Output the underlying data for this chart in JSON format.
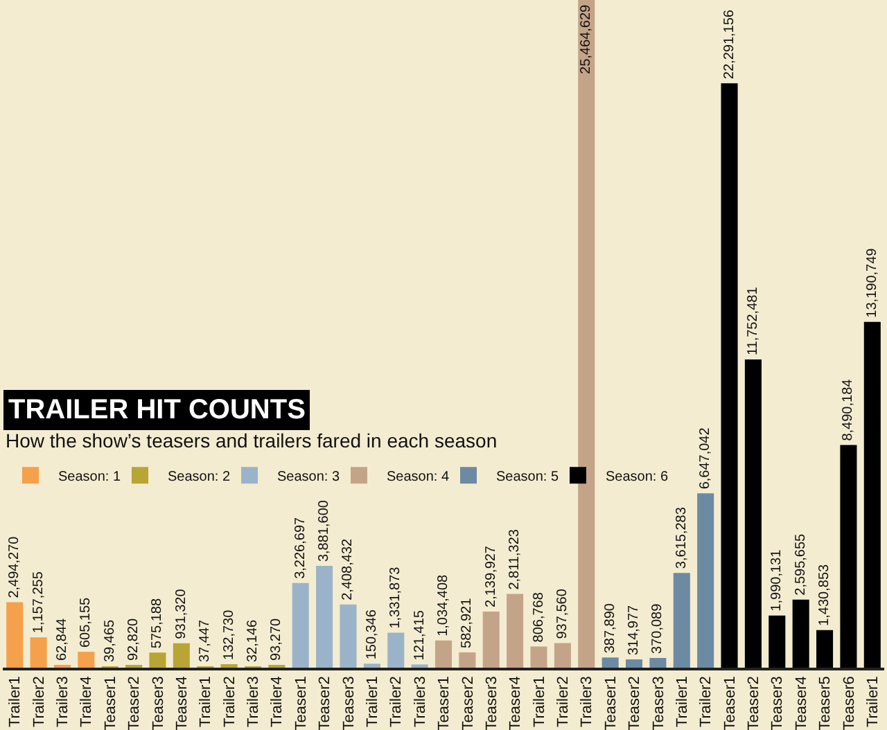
{
  "chart_data": {
    "type": "bar",
    "title": "TRAILER HIT COUNTS",
    "subtitle": "How the show’s teasers and trailers fared in each season",
    "categories": [
      "Trailer1",
      "Trailer2",
      "Trailer3",
      "Trailer4",
      "Teaser1",
      "Teaser2",
      "Teaser3",
      "Teaser4",
      "Trailer1",
      "Trailer2",
      "Trailer3",
      "Trailer4",
      "Teaser1",
      "Teaser2",
      "Teaser3",
      "Trailer1",
      "Trailer2",
      "Trailer3",
      "Teaser1",
      "Teaser2",
      "Teaser3",
      "Teaser4",
      "Trailer1",
      "Trailer2",
      "Trailer3",
      "Teaser1",
      "Teaser2",
      "Teaser3",
      "Trailer1",
      "Trailer2",
      "Teaser1",
      "Teaser2",
      "Teaser3",
      "Teaser4",
      "Teaser5",
      "Teaser6",
      "Trailer1"
    ],
    "series": [
      {
        "name": "Season: 1",
        "color": "#f5a04a",
        "values": [
          2494270,
          1157255,
          62844,
          605155,
          null,
          null,
          null,
          null,
          null,
          null,
          null,
          null,
          null,
          null,
          null,
          null,
          null,
          null,
          null,
          null,
          null,
          null,
          null,
          null,
          null,
          null,
          null,
          null,
          null,
          null,
          null,
          null,
          null,
          null,
          null,
          null,
          null
        ],
        "value_labels": [
          "2,494,270",
          "1,157,255",
          "62,844",
          "605,155",
          null,
          null,
          null,
          null,
          null,
          null,
          null,
          null,
          null,
          null,
          null,
          null,
          null,
          null,
          null,
          null,
          null,
          null,
          null,
          null,
          null,
          null,
          null,
          null,
          null,
          null,
          null,
          null,
          null,
          null,
          null,
          null,
          null
        ]
      },
      {
        "name": "Season: 2",
        "color": "#b8a535",
        "values": [
          null,
          null,
          null,
          null,
          39465,
          92820,
          575188,
          931320,
          37447,
          132730,
          32146,
          93270,
          null,
          null,
          null,
          null,
          null,
          null,
          null,
          null,
          null,
          null,
          null,
          null,
          null,
          null,
          null,
          null,
          null,
          null,
          null,
          null,
          null,
          null,
          null,
          null,
          null
        ],
        "value_labels": [
          null,
          null,
          null,
          null,
          "39,465",
          "92,820",
          "575,188",
          "931,320",
          "37,447",
          "132,730",
          "32,146",
          "93,270",
          null,
          null,
          null,
          null,
          null,
          null,
          null,
          null,
          null,
          null,
          null,
          null,
          null,
          null,
          null,
          null,
          null,
          null,
          null,
          null,
          null,
          null,
          null,
          null,
          null
        ]
      },
      {
        "name": "Season: 3",
        "color": "#9ab3c8",
        "values": [
          null,
          null,
          null,
          null,
          null,
          null,
          null,
          null,
          null,
          null,
          null,
          null,
          3226697,
          3881600,
          2408432,
          150346,
          1331873,
          121415,
          null,
          null,
          null,
          null,
          null,
          null,
          null,
          null,
          null,
          null,
          null,
          null,
          null,
          null,
          null,
          null,
          null,
          null,
          null
        ],
        "value_labels": [
          null,
          null,
          null,
          null,
          null,
          null,
          null,
          null,
          null,
          null,
          null,
          null,
          "3,226,697",
          "3,881,600",
          "2,408,432",
          "150,346",
          "1,331,873",
          "121,415",
          null,
          null,
          null,
          null,
          null,
          null,
          null,
          null,
          null,
          null,
          null,
          null,
          null,
          null,
          null,
          null,
          null,
          null,
          null
        ]
      },
      {
        "name": "Season: 4",
        "color": "#c4a488",
        "values": [
          null,
          null,
          null,
          null,
          null,
          null,
          null,
          null,
          null,
          null,
          null,
          null,
          null,
          null,
          null,
          null,
          null,
          null,
          1034408,
          582921,
          2139927,
          2811323,
          806768,
          937560,
          25464629,
          null,
          null,
          null,
          null,
          null,
          null,
          null,
          null,
          null,
          null,
          null,
          null
        ],
        "value_labels": [
          null,
          null,
          null,
          null,
          null,
          null,
          null,
          null,
          null,
          null,
          null,
          null,
          null,
          null,
          null,
          null,
          null,
          null,
          "1,034,408",
          "582,921",
          "2,139,927",
          "2,811,323",
          "806,768",
          "937,560",
          "25,464,629",
          null,
          null,
          null,
          null,
          null,
          null,
          null,
          null,
          null,
          null,
          null,
          null
        ]
      },
      {
        "name": "Season: 5",
        "color": "#6d8aa3",
        "values": [
          null,
          null,
          null,
          null,
          null,
          null,
          null,
          null,
          null,
          null,
          null,
          null,
          null,
          null,
          null,
          null,
          null,
          null,
          null,
          null,
          null,
          null,
          null,
          null,
          null,
          387890,
          314977,
          370089,
          3615283,
          6647042,
          null,
          null,
          null,
          null,
          null,
          null,
          null
        ],
        "value_labels": [
          null,
          null,
          null,
          null,
          null,
          null,
          null,
          null,
          null,
          null,
          null,
          null,
          null,
          null,
          null,
          null,
          null,
          null,
          null,
          null,
          null,
          null,
          null,
          null,
          null,
          "387,890",
          "314,977",
          "370,089",
          "3,615,283",
          "6,647,042",
          null,
          null,
          null,
          null,
          null,
          null,
          null
        ]
      },
      {
        "name": "Season: 6",
        "color": "#000000",
        "values": [
          null,
          null,
          null,
          null,
          null,
          null,
          null,
          null,
          null,
          null,
          null,
          null,
          null,
          null,
          null,
          null,
          null,
          null,
          null,
          null,
          null,
          null,
          null,
          null,
          null,
          null,
          null,
          null,
          null,
          null,
          22291156,
          11752481,
          1990131,
          2595655,
          1430853,
          8490184,
          13190749
        ],
        "value_labels": [
          null,
          null,
          null,
          null,
          null,
          null,
          null,
          null,
          null,
          null,
          null,
          null,
          null,
          null,
          null,
          null,
          null,
          null,
          null,
          null,
          null,
          null,
          null,
          null,
          null,
          null,
          null,
          null,
          null,
          null,
          "22,291,156",
          "11,752,481",
          "1,990,131",
          "2,595,655",
          "1,430,853",
          "8,490,184",
          "13,190,749"
        ]
      }
    ],
    "grid": false,
    "legend": "left"
  }
}
